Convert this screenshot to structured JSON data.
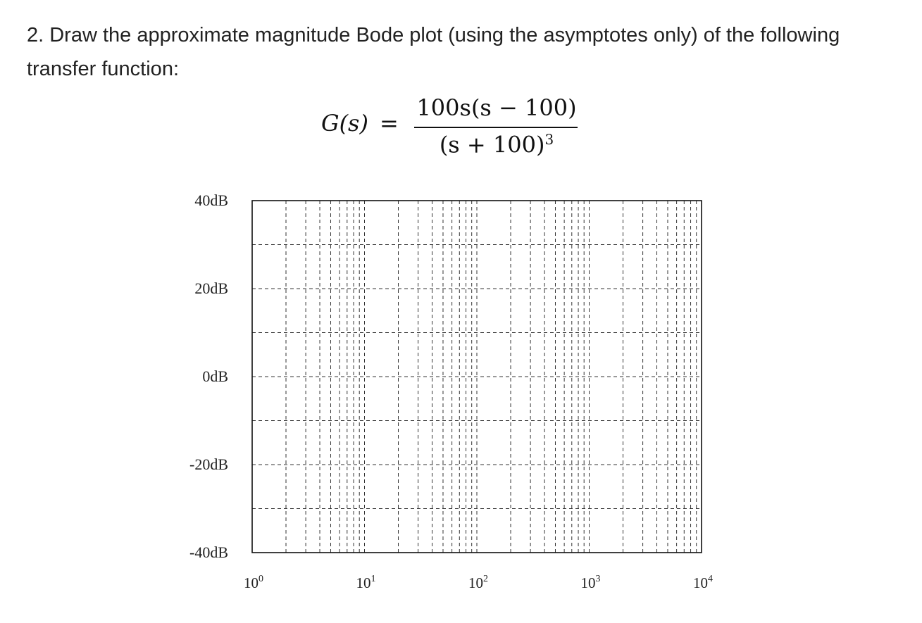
{
  "question": {
    "text": "2. Draw the approximate magnitude Bode plot (using the asymptotes only) of the following transfer function:"
  },
  "formula": {
    "lhs": "G(s)",
    "equals": "=",
    "numerator": "100s(s − 100)",
    "denominator_base": "(s + 100)",
    "denominator_exponent": "3"
  },
  "chart_data": {
    "type": "line",
    "title": "",
    "xlabel": "",
    "ylabel": "",
    "x_scale": "log",
    "xlim": [
      1,
      10000
    ],
    "ylim": [
      -40,
      40
    ],
    "y_ticks": [
      40,
      20,
      0,
      -20,
      -40
    ],
    "y_tick_labels": [
      "40dB",
      "20dB",
      "0dB",
      "-20dB",
      "-40dB"
    ],
    "x_ticks": [
      1,
      10,
      100,
      1000,
      10000
    ],
    "x_tick_labels": [
      {
        "base": "10",
        "exp": "0"
      },
      {
        "base": "10",
        "exp": "1"
      },
      {
        "base": "10",
        "exp": "2"
      },
      {
        "base": "10",
        "exp": "3"
      },
      {
        "base": "10",
        "exp": "4"
      }
    ],
    "horizontal_gridlines": [
      30,
      20,
      10,
      0,
      -10,
      -20,
      -30
    ],
    "grid": "dashed minor log grid",
    "series": []
  }
}
